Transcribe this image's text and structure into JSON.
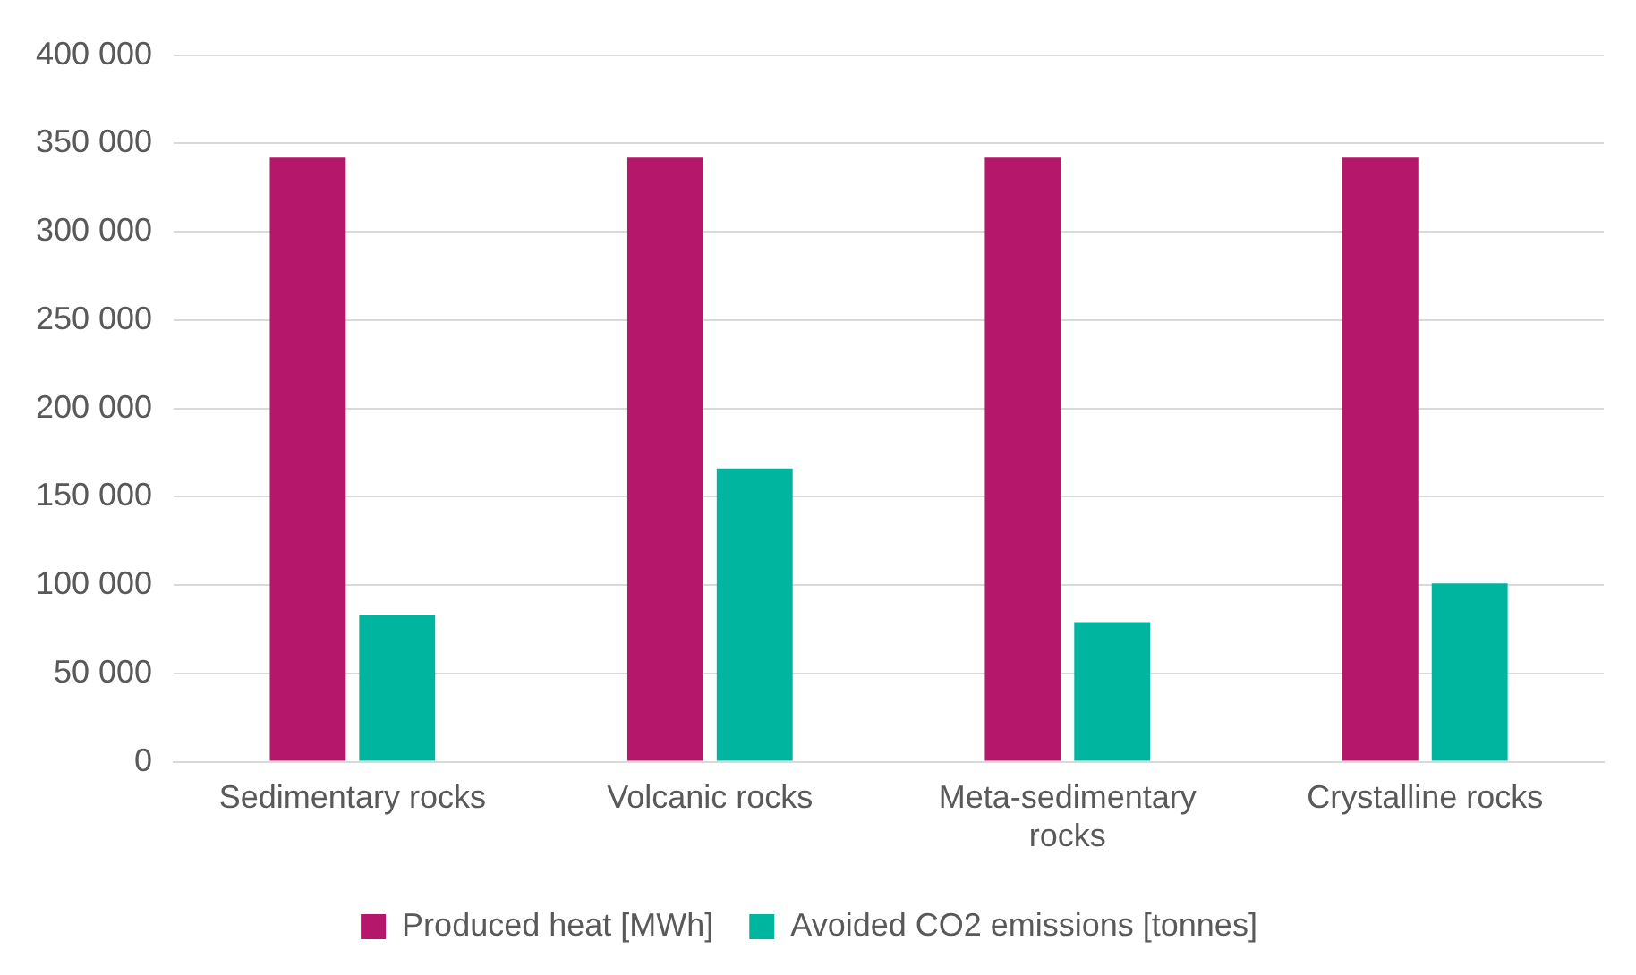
{
  "chart_data": {
    "type": "bar",
    "categories": [
      "Sedimentary rocks",
      "Volcanic rocks",
      "Meta-sedimentary rocks",
      "Crystalline rocks"
    ],
    "series": [
      {
        "name": "Produced heat [MWh]",
        "color": "#b5186b",
        "values": [
          342000,
          342000,
          342000,
          342000
        ]
      },
      {
        "name": "Avoided CO2 emissions [tonnes]",
        "color": "#00b5a0",
        "values": [
          83000,
          166000,
          79000,
          101000
        ]
      }
    ],
    "ylim": [
      0,
      400000
    ],
    "yticks": [
      {
        "value": 0,
        "label": "0"
      },
      {
        "value": 50000,
        "label": "50 000"
      },
      {
        "value": 100000,
        "label": "100 000"
      },
      {
        "value": 150000,
        "label": "150 000"
      },
      {
        "value": 200000,
        "label": "200 000"
      },
      {
        "value": 250000,
        "label": "250 000"
      },
      {
        "value": 300000,
        "label": "300 000"
      },
      {
        "value": 350000,
        "label": "350 000"
      },
      {
        "value": 400000,
        "label": "400 000"
      }
    ],
    "grid": "y",
    "legend": "bottom"
  }
}
